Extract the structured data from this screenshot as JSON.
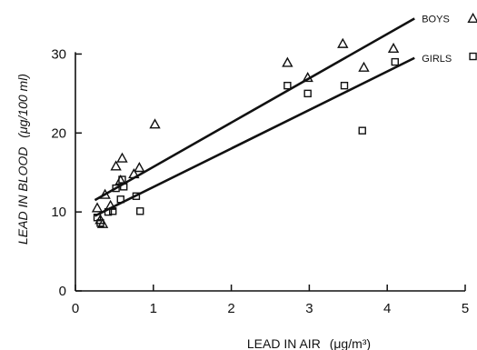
{
  "chart_data": {
    "type": "scatter",
    "title": "",
    "xlabel_main": "LEAD IN AIR",
    "xlabel_unit": "(μg/m³)",
    "ylabel_main": "LEAD IN BLOOD",
    "ylabel_unit": "(μg/100 ml)",
    "xlim": [
      0,
      5
    ],
    "ylim": [
      0,
      35
    ],
    "x_ticks": [
      "0",
      "1",
      "2",
      "3",
      "4",
      "5"
    ],
    "y_ticks": [
      "0",
      "10",
      "20",
      "30"
    ],
    "grid": false,
    "legend_placement": "right",
    "series": [
      {
        "name": "BOYS",
        "marker": "triangle",
        "points": [
          [
            0.28,
            10.5
          ],
          [
            0.32,
            9.0
          ],
          [
            0.35,
            8.5
          ],
          [
            0.38,
            12.2
          ],
          [
            0.45,
            10.8
          ],
          [
            0.52,
            15.8
          ],
          [
            0.6,
            16.8
          ],
          [
            0.58,
            14.0
          ],
          [
            0.75,
            14.8
          ],
          [
            0.82,
            15.6
          ],
          [
            1.02,
            21.1
          ],
          [
            2.72,
            28.9
          ],
          [
            2.98,
            27.0
          ],
          [
            3.43,
            31.3
          ],
          [
            3.7,
            28.3
          ],
          [
            4.08,
            30.7
          ],
          [
            5.1,
            34.5
          ]
        ],
        "fit": [
          [
            0.25,
            11.5
          ],
          [
            4.35,
            34.5
          ]
        ]
      },
      {
        "name": "GIRLS",
        "marker": "square",
        "points": [
          [
            0.28,
            9.3
          ],
          [
            0.32,
            8.6
          ],
          [
            0.42,
            10.0
          ],
          [
            0.48,
            10.1
          ],
          [
            0.52,
            13.0
          ],
          [
            0.58,
            11.6
          ],
          [
            0.6,
            14.1
          ],
          [
            0.62,
            13.2
          ],
          [
            0.78,
            12.0
          ],
          [
            0.83,
            10.1
          ],
          [
            2.72,
            26.0
          ],
          [
            2.98,
            25.0
          ],
          [
            3.45,
            26.0
          ],
          [
            3.68,
            20.3
          ],
          [
            4.1,
            29.0
          ],
          [
            5.1,
            29.7
          ]
        ],
        "fit": [
          [
            0.25,
            9.5
          ],
          [
            4.35,
            29.5
          ]
        ]
      }
    ]
  }
}
